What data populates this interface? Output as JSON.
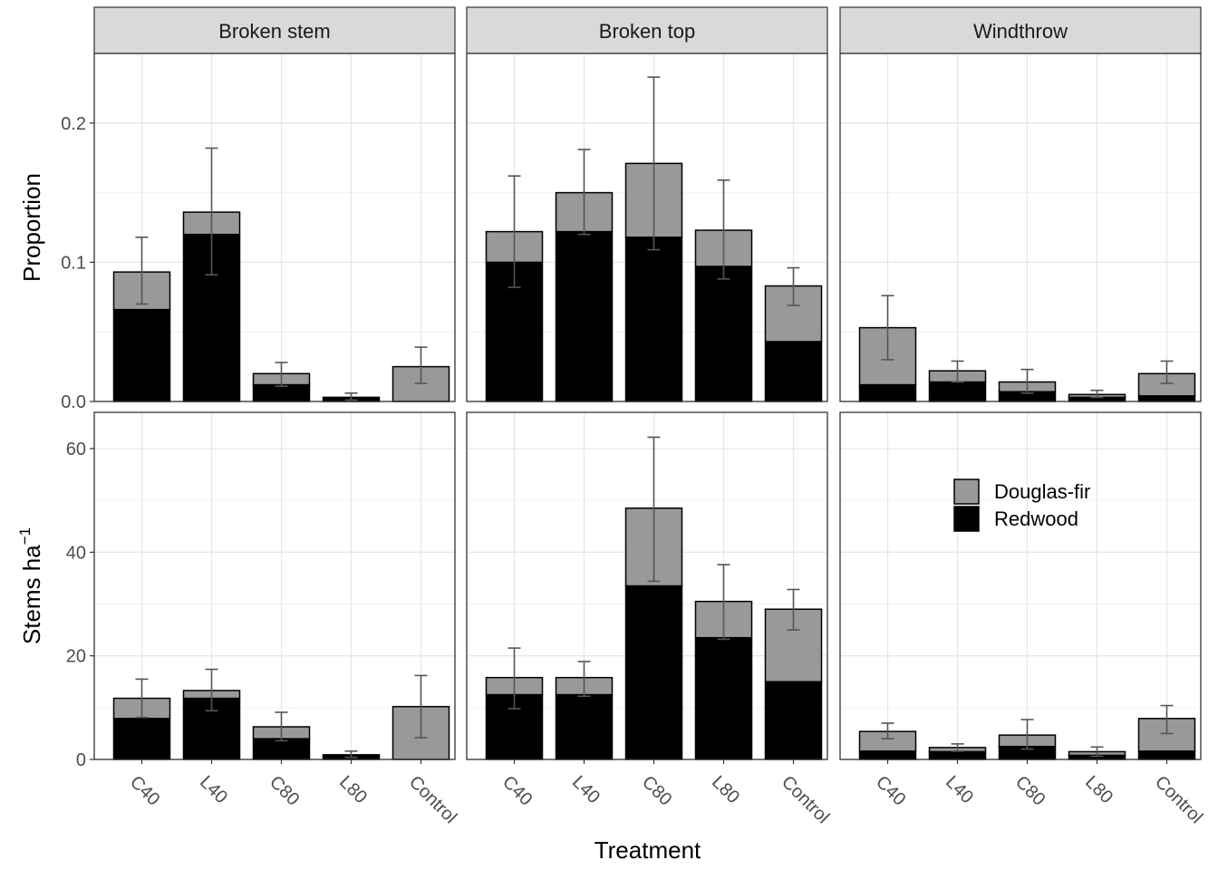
{
  "chart_data": {
    "type": "bar",
    "stacked": true,
    "categories": [
      "C40",
      "L40",
      "C80",
      "L80",
      "Control"
    ],
    "facet_columns": [
      "Broken stem",
      "Broken top",
      "Windthrow"
    ],
    "xlabel": "Treatment",
    "legend": {
      "placement": "inside-right",
      "entries": [
        {
          "name": "Douglas-fir",
          "color": "#999999"
        },
        {
          "name": "Redwood",
          "color": "#000000"
        }
      ]
    },
    "error_bar_color": "#555555",
    "grid": true,
    "rows": [
      {
        "ylabel_main": "Proportion",
        "ylabel_sup": "",
        "ylim": [
          0,
          0.25
        ],
        "yticks": [
          0.0,
          0.1,
          0.2
        ],
        "yticklabels": [
          "0.0",
          "0.1",
          "0.2"
        ],
        "panels": [
          {
            "facet": "Broken stem",
            "series": [
              {
                "name": "Redwood",
                "values": [
                  0.066,
                  0.12,
                  0.012,
                  0.003,
                  0.0
                ]
              },
              {
                "name": "Douglas-fir",
                "values": [
                  0.027,
                  0.016,
                  0.008,
                  0.0,
                  0.025
                ]
              }
            ],
            "error_low": [
              0.07,
              0.091,
              0.011,
              0.001,
              0.013
            ],
            "error_high": [
              0.118,
              0.182,
              0.028,
              0.006,
              0.039
            ]
          },
          {
            "facet": "Broken top",
            "series": [
              {
                "name": "Redwood",
                "values": [
                  0.1,
                  0.122,
                  0.118,
                  0.097,
                  0.043
                ]
              },
              {
                "name": "Douglas-fir",
                "values": [
                  0.022,
                  0.028,
                  0.053,
                  0.026,
                  0.04
                ]
              }
            ],
            "error_low": [
              0.082,
              0.12,
              0.109,
              0.088,
              0.069
            ],
            "error_high": [
              0.162,
              0.181,
              0.233,
              0.159,
              0.096
            ]
          },
          {
            "facet": "Windthrow",
            "series": [
              {
                "name": "Redwood",
                "values": [
                  0.012,
                  0.014,
                  0.007,
                  0.003,
                  0.004
                ]
              },
              {
                "name": "Douglas-fir",
                "values": [
                  0.041,
                  0.008,
                  0.007,
                  0.002,
                  0.016
                ]
              }
            ],
            "error_low": [
              0.03,
              0.014,
              0.006,
              0.003,
              0.013
            ],
            "error_high": [
              0.076,
              0.029,
              0.023,
              0.008,
              0.029
            ]
          }
        ]
      },
      {
        "ylabel_main": "Stems ha",
        "ylabel_sup": "−1",
        "ylim": [
          0,
          67
        ],
        "yticks": [
          0,
          20,
          40,
          60
        ],
        "yticklabels": [
          "0",
          "20",
          "40",
          "60"
        ],
        "panels": [
          {
            "facet": "Broken stem",
            "series": [
              {
                "name": "Redwood",
                "values": [
                  7.9,
                  11.8,
                  4.0,
                  0.9,
                  0.0
                ]
              },
              {
                "name": "Douglas-fir",
                "values": [
                  3.9,
                  1.5,
                  2.3,
                  0.0,
                  10.2
                ]
              }
            ],
            "error_low": [
              8.1,
              9.4,
              3.6,
              0.4,
              4.2
            ],
            "error_high": [
              15.5,
              17.4,
              9.1,
              1.6,
              16.2
            ]
          },
          {
            "facet": "Broken top",
            "series": [
              {
                "name": "Redwood",
                "values": [
                  12.5,
                  12.5,
                  33.5,
                  23.5,
                  15.0
                ]
              },
              {
                "name": "Douglas-fir",
                "values": [
                  3.3,
                  3.3,
                  15.0,
                  7.0,
                  14.0
                ]
              }
            ],
            "error_low": [
              9.8,
              12.2,
              34.4,
              23.2,
              25.0
            ],
            "error_high": [
              21.5,
              18.9,
              62.2,
              37.6,
              32.8
            ]
          },
          {
            "facet": "Windthrow",
            "series": [
              {
                "name": "Redwood",
                "values": [
                  1.6,
                  1.5,
                  2.5,
                  0.8,
                  1.6
                ]
              },
              {
                "name": "Douglas-fir",
                "values": [
                  3.8,
                  0.8,
                  2.2,
                  0.7,
                  6.3
                ]
              }
            ],
            "error_low": [
              4.0,
              1.6,
              2.0,
              0.6,
              5.0
            ],
            "error_high": [
              7.0,
              3.0,
              7.7,
              2.4,
              10.4
            ]
          }
        ]
      }
    ]
  }
}
